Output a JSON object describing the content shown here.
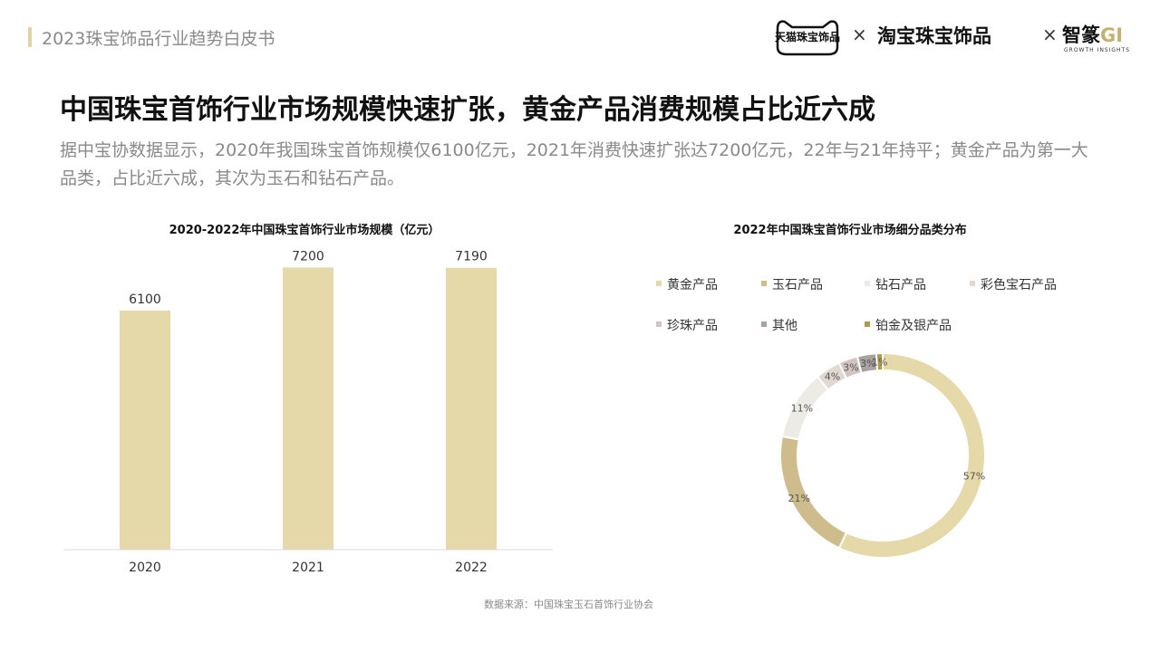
{
  "header": {
    "title": "2023珠宝饰品行业趋势白皮书",
    "logos": {
      "tmall": "天猫珠宝饰品",
      "taobao": "淘宝珠宝饰品",
      "zhizhuan": "智篆",
      "zhizhuan_gi": "GI",
      "zhizhuan_sub": "GROWTH INSIGHTS",
      "times": "×"
    }
  },
  "main": {
    "title": "中国珠宝首饰行业市场规模快速扩张，黄金产品消费规模占比近六成",
    "subtitle": "据中宝协数据显示，2020年我国珠宝首饰规模仅6100亿元，2021年消费快速扩张达7200亿元，22年与21年持平；黄金产品为第一大品类，占比近六成，其次为玉石和钻石产品。"
  },
  "chart_data": [
    {
      "type": "bar",
      "title": "2020-2022年中国珠宝首饰行业市场规模（亿元）",
      "categories": [
        "2020",
        "2021",
        "2022"
      ],
      "values": [
        6100,
        7200,
        7190
      ],
      "ylim": [
        0,
        7600
      ],
      "color": "#e5d9aa",
      "grid": false,
      "data_labels": true
    },
    {
      "type": "pie",
      "donut": true,
      "title": "2022年中国珠宝首饰行业市场细分品类分布",
      "legend_position": "top",
      "slices": [
        {
          "label": "黄金产品",
          "value": 57,
          "text": "57%",
          "color": "#e5d9aa"
        },
        {
          "label": "玉石产品",
          "value": 21,
          "text": "21%",
          "color": "#cebc8c"
        },
        {
          "label": "钻石产品",
          "value": 11,
          "text": "11%",
          "color": "#ecebe6"
        },
        {
          "label": "彩色宝石产品",
          "value": 4,
          "text": "4%",
          "color": "#e1d8d2"
        },
        {
          "label": "珍珠产品",
          "value": 3,
          "text": "3%",
          "color": "#d4c3c3"
        },
        {
          "label": "其他",
          "value": 3,
          "text": "3%",
          "color": "#a9a2a0"
        },
        {
          "label": "铂金及银产品",
          "value": 1,
          "text": "1%",
          "color": "#b29a4d"
        }
      ]
    }
  ],
  "source": "数据来源：中国珠宝玉石首饰行业协会"
}
